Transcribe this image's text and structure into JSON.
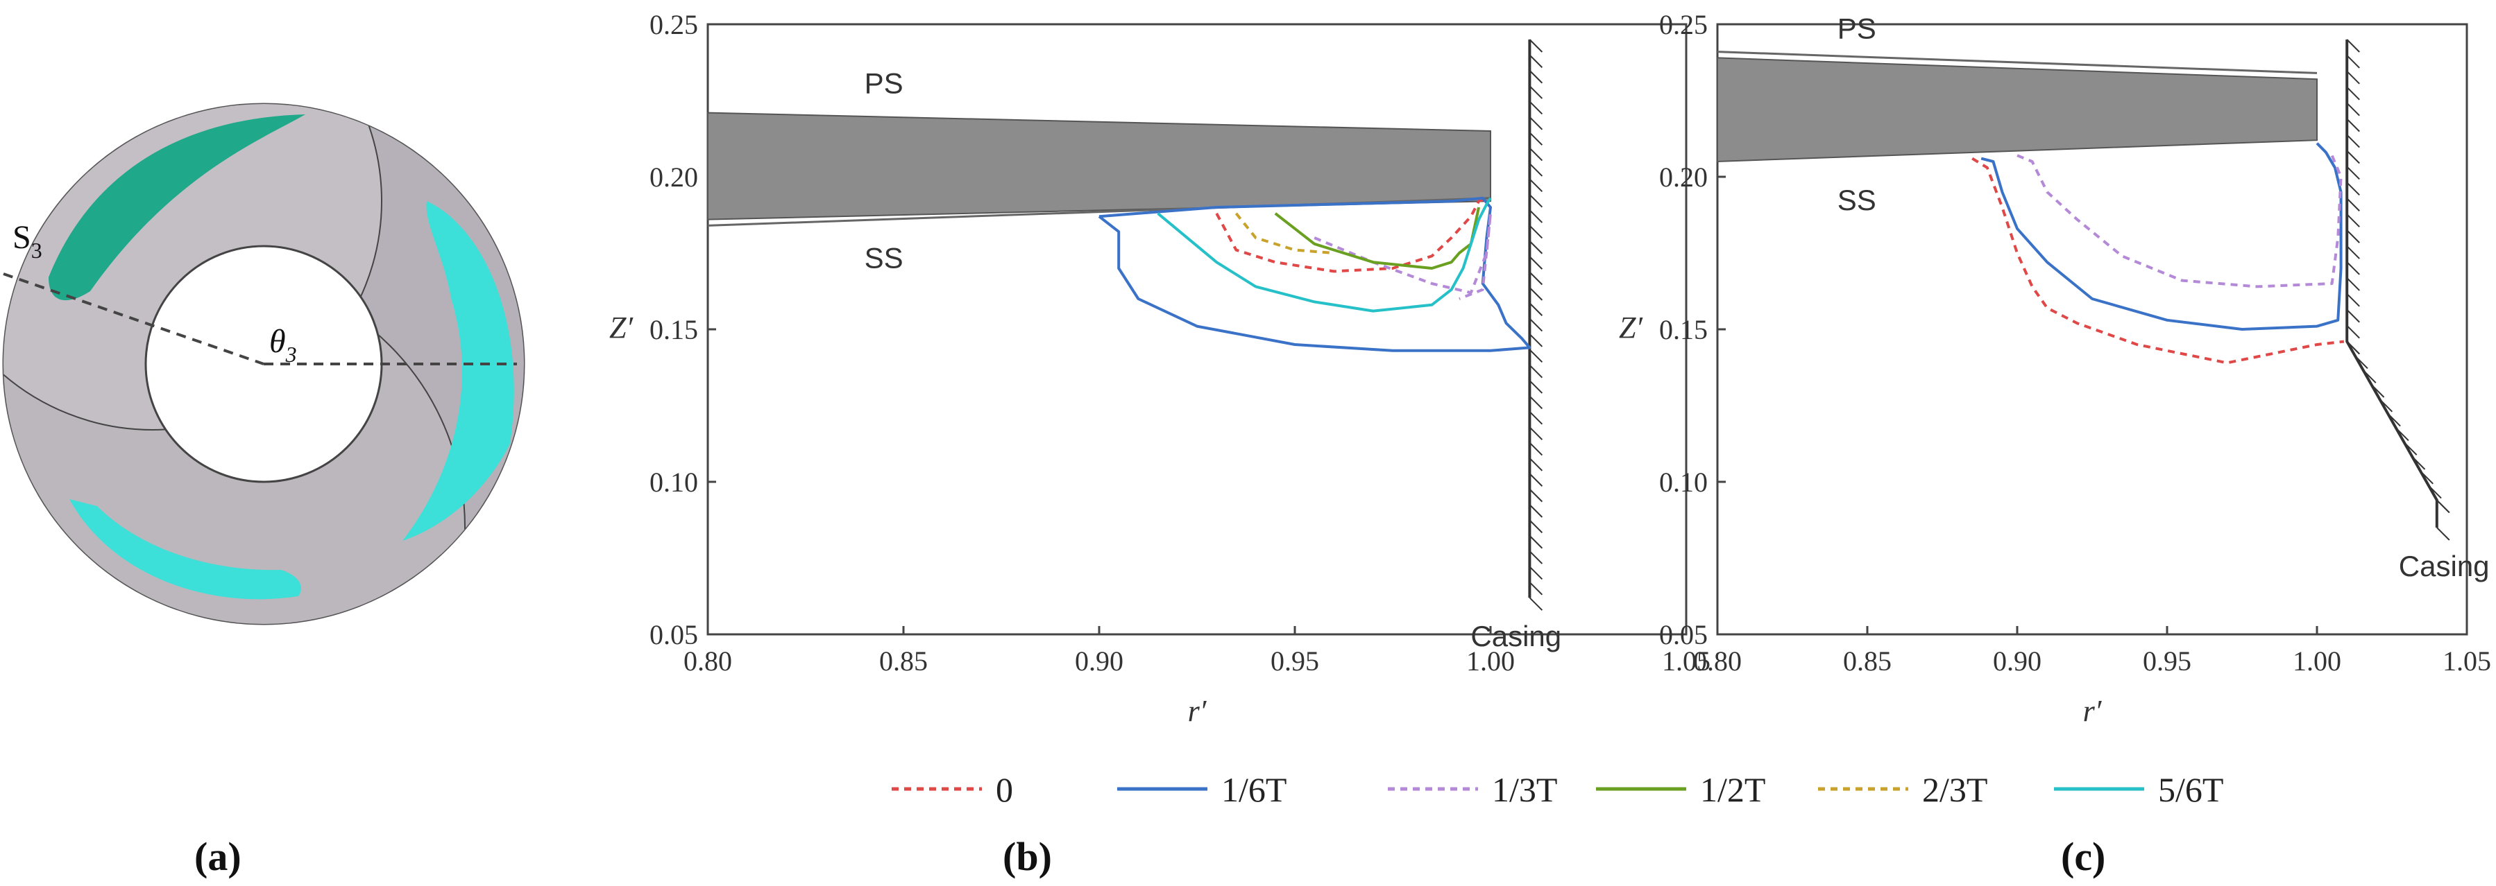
{
  "panel_labels": {
    "a": "(a)",
    "b": "(b)",
    "c": "(c)"
  },
  "impeller": {
    "slice_label": "S",
    "slice_sub": "3",
    "angle_label": "θ",
    "angle_sub": "3"
  },
  "colors": {
    "s0": "#e04848",
    "s1": "#3a72c8",
    "s2": "#b48ad8",
    "s3": "#6aa020",
    "s4": "#c8a22a",
    "s5": "#26c0c8",
    "blade": "#8c8c8c",
    "cyan": "#3de0d8",
    "disk": "#c9c5cb"
  },
  "legend": [
    {
      "label": "0",
      "color": "#e04848",
      "dash": "10,8"
    },
    {
      "label": "1/6T",
      "color": "#3a72c8",
      "dash": ""
    },
    {
      "label": "1/3T",
      "color": "#b48ad8",
      "dash": "10,8"
    },
    {
      "label": "1/2T",
      "color": "#6aa020",
      "dash": ""
    },
    {
      "label": "2/3T",
      "color": "#c8a22a",
      "dash": "10,8"
    },
    {
      "label": "5/6T",
      "color": "#26c0c8",
      "dash": ""
    }
  ],
  "chart_data": [
    {
      "type": "line",
      "panel": "(b)",
      "xlabel": "r′",
      "ylabel": "Z′",
      "xlim": [
        0.8,
        1.05
      ],
      "ylim": [
        0.05,
        0.25
      ],
      "xticks": [
        "0.80",
        "0.85",
        "0.90",
        "0.95",
        "1.00",
        "1.05"
      ],
      "yticks": [
        "0.05",
        "0.10",
        "0.15",
        "0.20",
        "0.25"
      ],
      "annotations": {
        "ps": "PS",
        "ss": "SS",
        "casing": "Casing"
      },
      "blade": {
        "x": [
          0.8,
          1.0,
          1.0,
          0.8
        ],
        "y": [
          0.221,
          0.215,
          0.192,
          0.186
        ]
      },
      "blade_edge": {
        "x": [
          0.8,
          1.0
        ],
        "y": [
          0.184,
          0.193
        ]
      },
      "casing_wall": {
        "x": [
          1.01,
          1.01
        ],
        "y": [
          0.245,
          0.062
        ]
      },
      "series": [
        {
          "name": "0",
          "x": [
            0.93,
            0.935,
            0.945,
            0.96,
            0.975,
            0.985,
            0.99,
            0.995,
            0.997,
            0.999
          ],
          "y": [
            0.188,
            0.176,
            0.172,
            0.169,
            0.17,
            0.174,
            0.18,
            0.187,
            0.192,
            0.193
          ]
        },
        {
          "name": "1/6T",
          "x": [
            0.9,
            0.93,
            0.96,
            0.99,
            0.998,
            1.0,
            0.999,
            0.998,
            1.002,
            1.004,
            1.008,
            1.01,
            1.0,
            0.99,
            0.975,
            0.95,
            0.925,
            0.91,
            0.905,
            0.905,
            0.9
          ],
          "y": [
            0.187,
            0.19,
            0.191,
            0.192,
            0.193,
            0.19,
            0.18,
            0.165,
            0.158,
            0.152,
            0.147,
            0.144,
            0.143,
            0.143,
            0.143,
            0.145,
            0.151,
            0.16,
            0.17,
            0.182,
            0.187
          ]
        },
        {
          "name": "1/3T",
          "x": [
            0.955,
            0.97,
            0.985,
            0.995,
            0.999,
            1.0,
            0.998,
            0.992
          ],
          "y": [
            0.18,
            0.172,
            0.165,
            0.162,
            0.175,
            0.188,
            0.163,
            0.16
          ]
        },
        {
          "name": "1/2T",
          "x": [
            0.945,
            0.955,
            0.97,
            0.985,
            0.99,
            0.992,
            0.995,
            0.997
          ],
          "y": [
            0.188,
            0.178,
            0.172,
            0.17,
            0.172,
            0.175,
            0.178,
            0.19
          ]
        },
        {
          "name": "2/3T",
          "x": [
            0.935,
            0.94,
            0.95,
            0.96
          ],
          "y": [
            0.188,
            0.18,
            0.176,
            0.175
          ]
        },
        {
          "name": "5/6T",
          "x": [
            0.915,
            0.93,
            0.94,
            0.955,
            0.97,
            0.985,
            0.99,
            0.993,
            0.995,
            0.997,
            0.999,
            1.0
          ],
          "y": [
            0.188,
            0.172,
            0.164,
            0.159,
            0.156,
            0.158,
            0.163,
            0.17,
            0.178,
            0.186,
            0.191,
            0.193
          ]
        }
      ]
    },
    {
      "type": "line",
      "panel": "(c)",
      "xlabel": "r′",
      "ylabel": "Z′",
      "xlim": [
        0.8,
        1.05
      ],
      "ylim": [
        0.05,
        0.25
      ],
      "xticks": [
        "0.80",
        "0.85",
        "0.90",
        "0.95",
        "1.00",
        "1.05"
      ],
      "yticks": [
        "0.05",
        "0.10",
        "0.15",
        "0.20",
        "0.25"
      ],
      "annotations": {
        "ps": "PS",
        "ss": "SS",
        "casing": "Casing"
      },
      "blade": {
        "x": [
          0.8,
          1.0,
          1.0,
          0.8
        ],
        "y": [
          0.239,
          0.232,
          0.212,
          0.205
        ]
      },
      "blade_edge": {
        "x": [
          0.8,
          1.0
        ],
        "y": [
          0.241,
          0.234
        ]
      },
      "casing_wall": {
        "x": [
          1.01,
          1.01,
          1.04,
          1.04
        ],
        "y": [
          0.245,
          0.146,
          0.094,
          0.085
        ]
      },
      "series": [
        {
          "name": "0",
          "x": [
            0.885,
            0.89,
            0.895,
            0.9,
            0.905,
            0.91,
            0.92,
            0.94,
            0.97,
            1.0,
            1.009
          ],
          "y": [
            0.206,
            0.203,
            0.19,
            0.175,
            0.164,
            0.157,
            0.152,
            0.145,
            0.139,
            0.145,
            0.146
          ]
        },
        {
          "name": "1/6T",
          "x": [
            0.888,
            0.892,
            0.895,
            0.9,
            0.91,
            0.925,
            0.95,
            0.975,
            1.0,
            1.007,
            1.008,
            1.008,
            1.006,
            1.003,
            1.0
          ],
          "y": [
            0.206,
            0.205,
            0.195,
            0.183,
            0.172,
            0.16,
            0.153,
            0.15,
            0.151,
            0.153,
            0.17,
            0.195,
            0.203,
            0.208,
            0.211
          ]
        },
        {
          "name": "1/3T",
          "x": [
            0.9,
            0.905,
            0.91,
            0.92,
            0.935,
            0.955,
            0.98,
            1.005,
            1.007,
            1.008,
            1.005
          ],
          "y": [
            0.207,
            0.205,
            0.195,
            0.186,
            0.174,
            0.166,
            0.164,
            0.165,
            0.18,
            0.2,
            0.207
          ]
        }
      ]
    }
  ]
}
